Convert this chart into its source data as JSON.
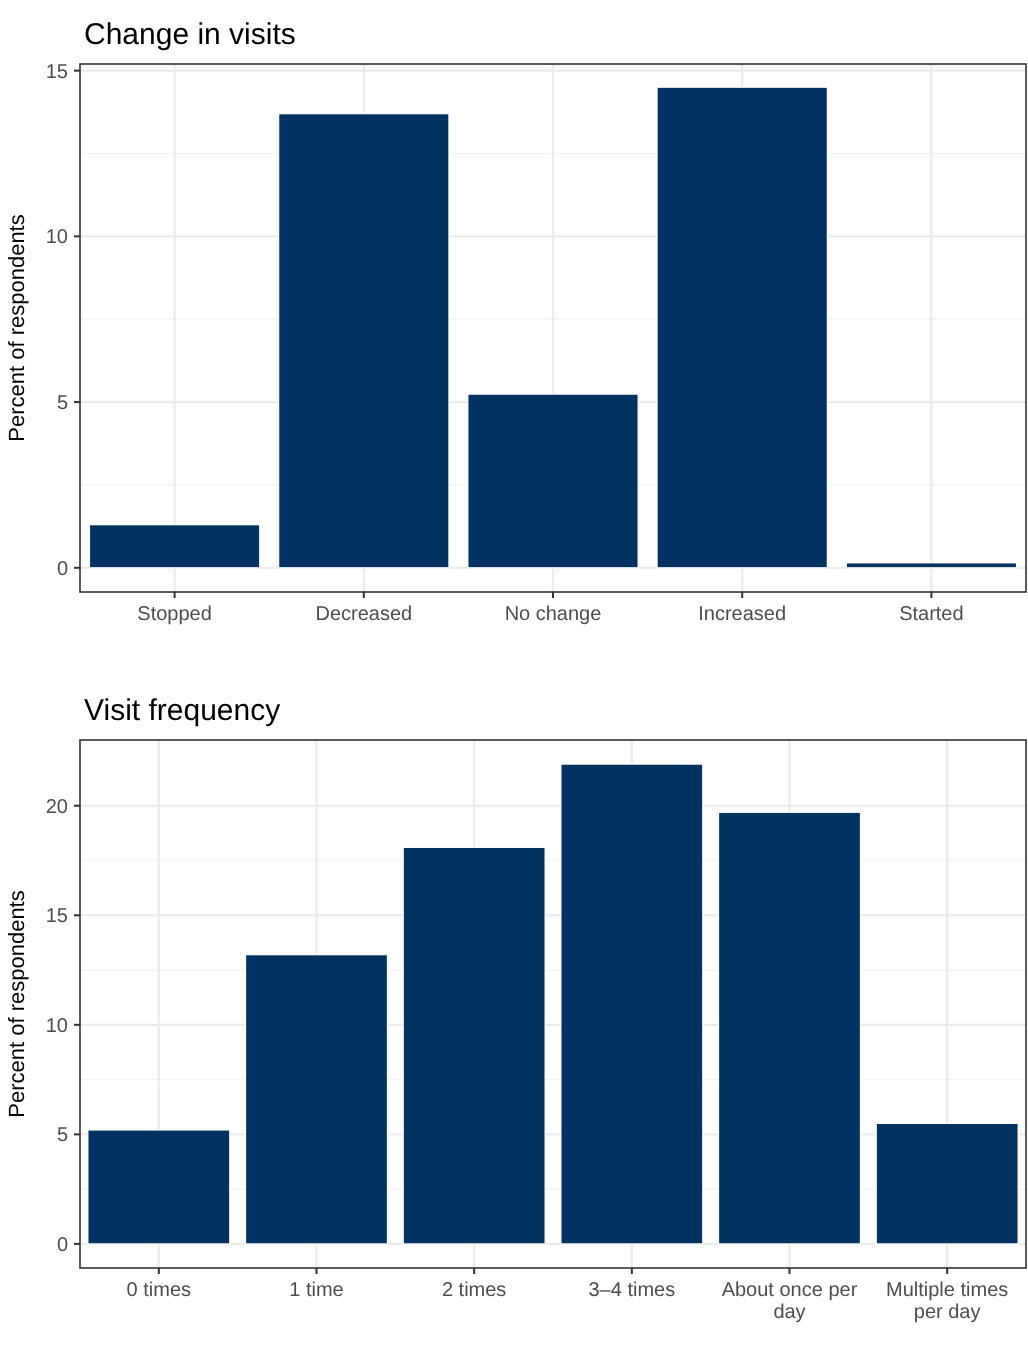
{
  "chart_data": [
    {
      "type": "bar",
      "title": "Change in visits",
      "ylabel": "Percent of respondents",
      "categories": [
        "Stopped",
        "Decreased",
        "No change",
        "Increased",
        "Started"
      ],
      "values": [
        1.3,
        13.7,
        5.24,
        14.5,
        0.15
      ],
      "color": "#023261",
      "ylim": [
        -0.73,
        15.2
      ],
      "yticks": [
        0,
        5,
        10,
        15
      ],
      "grid": true
    },
    {
      "type": "bar",
      "title": "Visit frequency",
      "ylabel": "Percent of respondents",
      "categories": [
        "0 times",
        "1 time",
        "2 times",
        "3–4 times",
        "About once per day",
        "Multiple times per day"
      ],
      "values": [
        5.2,
        13.2,
        18.1,
        21.9,
        19.7,
        5.5
      ],
      "color": "#023261",
      "ylim": [
        -1.1,
        23
      ],
      "yticks": [
        0,
        5,
        10,
        15,
        20
      ],
      "grid": true
    }
  ]
}
